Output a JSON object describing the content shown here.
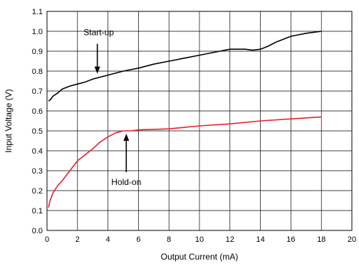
{
  "chart_data": {
    "type": "line",
    "title": "",
    "xlabel": "Output Current (mA)",
    "ylabel": "Input Voltage (V)",
    "xlim": [
      0,
      20
    ],
    "ylim": [
      0,
      1.1
    ],
    "grid": true,
    "x_ticks": [
      "0",
      "2",
      "4",
      "6",
      "8",
      "10",
      "12",
      "14",
      "16",
      "18",
      "20"
    ],
    "y_ticks": [
      "0.0",
      "0.1",
      "0.2",
      "0.3",
      "0.4",
      "0.5",
      "0.6",
      "0.7",
      "0.8",
      "0.9",
      "1.0",
      "1.1"
    ],
    "series": [
      {
        "name": "Start-up",
        "color": "#000000",
        "points": [
          [
            0.1,
            0.65
          ],
          [
            0.2,
            0.655
          ],
          [
            0.4,
            0.675
          ],
          [
            0.7,
            0.69
          ],
          [
            1.0,
            0.71
          ],
          [
            1.5,
            0.725
          ],
          [
            2.0,
            0.735
          ],
          [
            2.5,
            0.745
          ],
          [
            3.0,
            0.76
          ],
          [
            3.5,
            0.77
          ],
          [
            4.0,
            0.78
          ],
          [
            5.0,
            0.8
          ],
          [
            6.0,
            0.815
          ],
          [
            7.0,
            0.835
          ],
          [
            8.0,
            0.85
          ],
          [
            9.0,
            0.865
          ],
          [
            10.0,
            0.88
          ],
          [
            11.0,
            0.895
          ],
          [
            12.0,
            0.91
          ],
          [
            13.0,
            0.91
          ],
          [
            13.5,
            0.905
          ],
          [
            14.0,
            0.91
          ],
          [
            14.5,
            0.925
          ],
          [
            15.0,
            0.945
          ],
          [
            15.5,
            0.96
          ],
          [
            16.0,
            0.975
          ],
          [
            17.0,
            0.99
          ],
          [
            18.0,
            1.0
          ]
        ]
      },
      {
        "name": "Hold-on",
        "color": "#e8202a",
        "points": [
          [
            0.1,
            0.115
          ],
          [
            0.2,
            0.15
          ],
          [
            0.4,
            0.19
          ],
          [
            0.7,
            0.225
          ],
          [
            1.0,
            0.25
          ],
          [
            1.5,
            0.3
          ],
          [
            2.0,
            0.35
          ],
          [
            2.5,
            0.38
          ],
          [
            3.0,
            0.41
          ],
          [
            3.5,
            0.445
          ],
          [
            4.0,
            0.47
          ],
          [
            4.5,
            0.49
          ],
          [
            5.0,
            0.5
          ],
          [
            5.5,
            0.5
          ],
          [
            6.0,
            0.505
          ],
          [
            8.0,
            0.51
          ],
          [
            10.0,
            0.525
          ],
          [
            12.0,
            0.535
          ],
          [
            14.0,
            0.55
          ],
          [
            16.0,
            0.56
          ],
          [
            18.0,
            0.57
          ]
        ]
      }
    ],
    "annotations": [
      {
        "text": "Start-up",
        "arrow_to": [
          3.3,
          0.78
        ]
      },
      {
        "text": "Hold-on",
        "arrow_to": [
          5.2,
          0.5
        ]
      }
    ]
  }
}
